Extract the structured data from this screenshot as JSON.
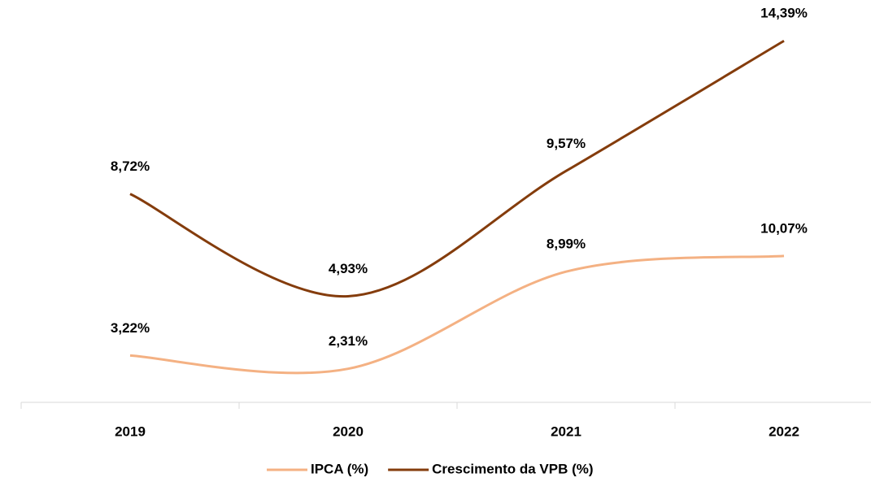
{
  "chart_data": {
    "type": "line",
    "categories": [
      "2019",
      "2020",
      "2021",
      "2022"
    ],
    "series": [
      {
        "name": "IPCA (%)",
        "color": "#f4b183",
        "values": [
          3.22,
          2.31,
          8.99,
          10.07
        ],
        "value_labels": [
          "3,22%",
          "2,31%",
          "8,99%",
          "10,07%"
        ]
      },
      {
        "name": "Crescimento da VPB (%)",
        "color": "#843c0c",
        "axis": "y2",
        "values": [
          8.72,
          4.93,
          9.57,
          14.39
        ],
        "value_labels": [
          "8,72%",
          "4,93%",
          "9,57%",
          "14,39%"
        ]
      }
    ],
    "ylim": [
      0,
      26
    ],
    "y2lim": [
      1,
      15
    ],
    "legend": "bottom"
  }
}
